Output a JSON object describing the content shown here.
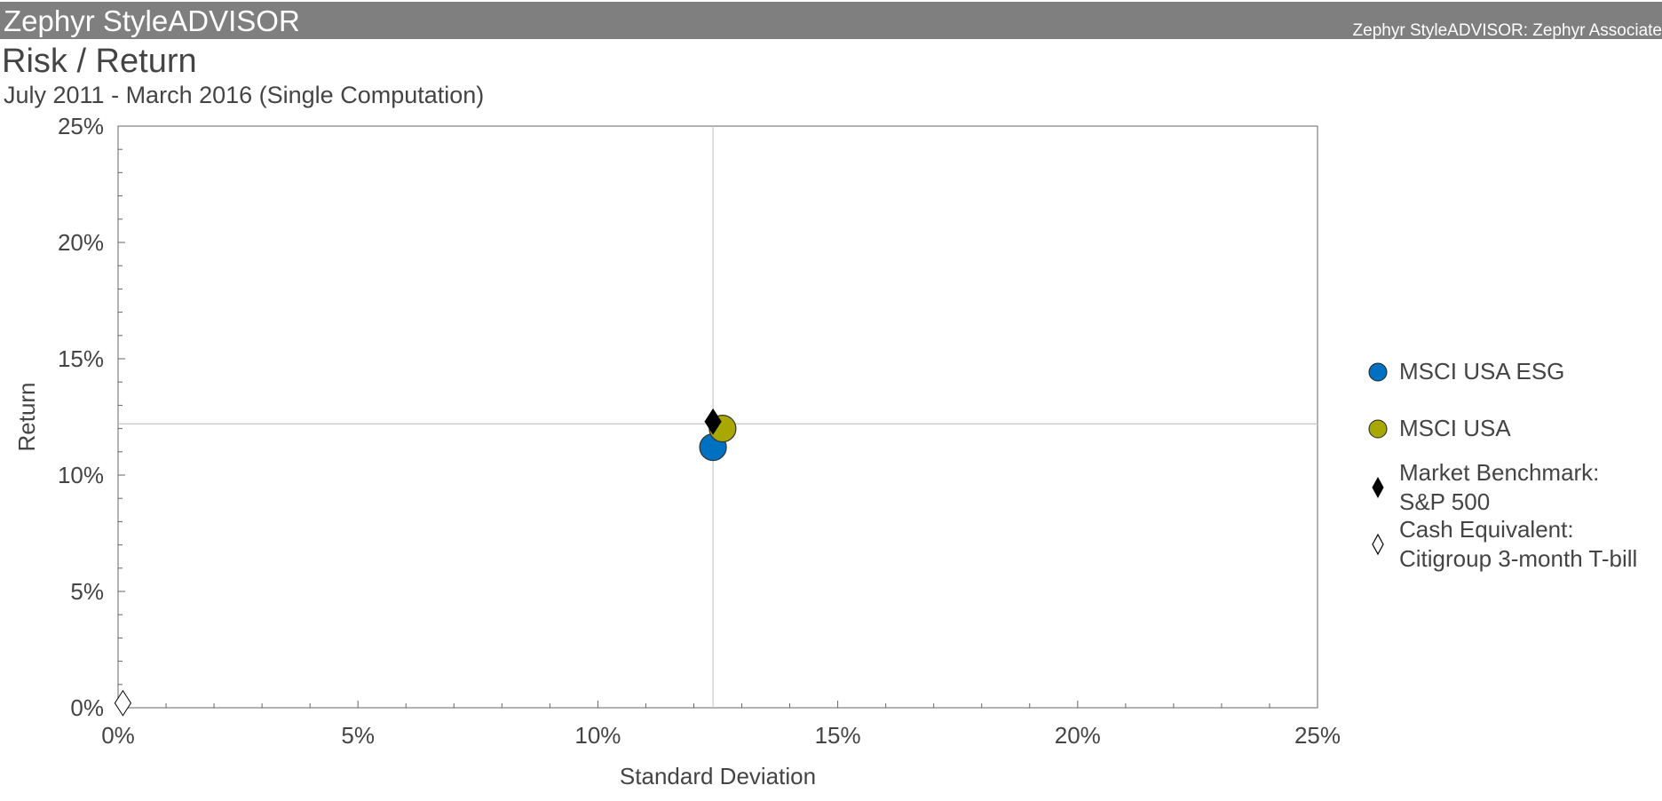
{
  "header": {
    "app_title": "Zephyr StyleADVISOR",
    "app_subtitle": "Zephyr StyleADVISOR: Zephyr Associate"
  },
  "report": {
    "title": "Risk / Return",
    "subtitle": "July 2011 - March 2016 (Single Computation)"
  },
  "chart_data": {
    "type": "scatter",
    "title": "Risk / Return",
    "xlabel": "Standard Deviation",
    "ylabel": "Return",
    "xlim": [
      0,
      25
    ],
    "ylim": [
      0,
      25
    ],
    "x_ticks": [
      "0%",
      "5%",
      "10%",
      "15%",
      "20%",
      "25%"
    ],
    "y_ticks": [
      "0%",
      "5%",
      "10%",
      "15%",
      "20%",
      "25%"
    ],
    "reference_lines": {
      "x": 12.4,
      "y": 12.2
    },
    "series": [
      {
        "name": "MSCI USA ESG",
        "x": 12.4,
        "y": 11.2,
        "marker": "circle",
        "color": "#0070c0"
      },
      {
        "name": "MSCI USA",
        "x": 12.6,
        "y": 12.0,
        "marker": "circle",
        "color": "#a8a800"
      },
      {
        "name": "Market Benchmark: S&P 500",
        "x": 12.4,
        "y": 12.3,
        "marker": "diamond-filled",
        "color": "#000000"
      },
      {
        "name": "Cash Equivalent: Citigroup 3-month T-bill",
        "x": 0.1,
        "y": 0.2,
        "marker": "diamond-open",
        "color": "#ffffff"
      }
    ]
  },
  "legend": {
    "items": [
      {
        "line1": "MSCI USA ESG",
        "line2": ""
      },
      {
        "line1": "MSCI USA",
        "line2": ""
      },
      {
        "line1": "Market Benchmark:",
        "line2": "S&P 500"
      },
      {
        "line1": "Cash Equivalent:",
        "line2": "Citigroup 3-month T-bill"
      }
    ]
  }
}
